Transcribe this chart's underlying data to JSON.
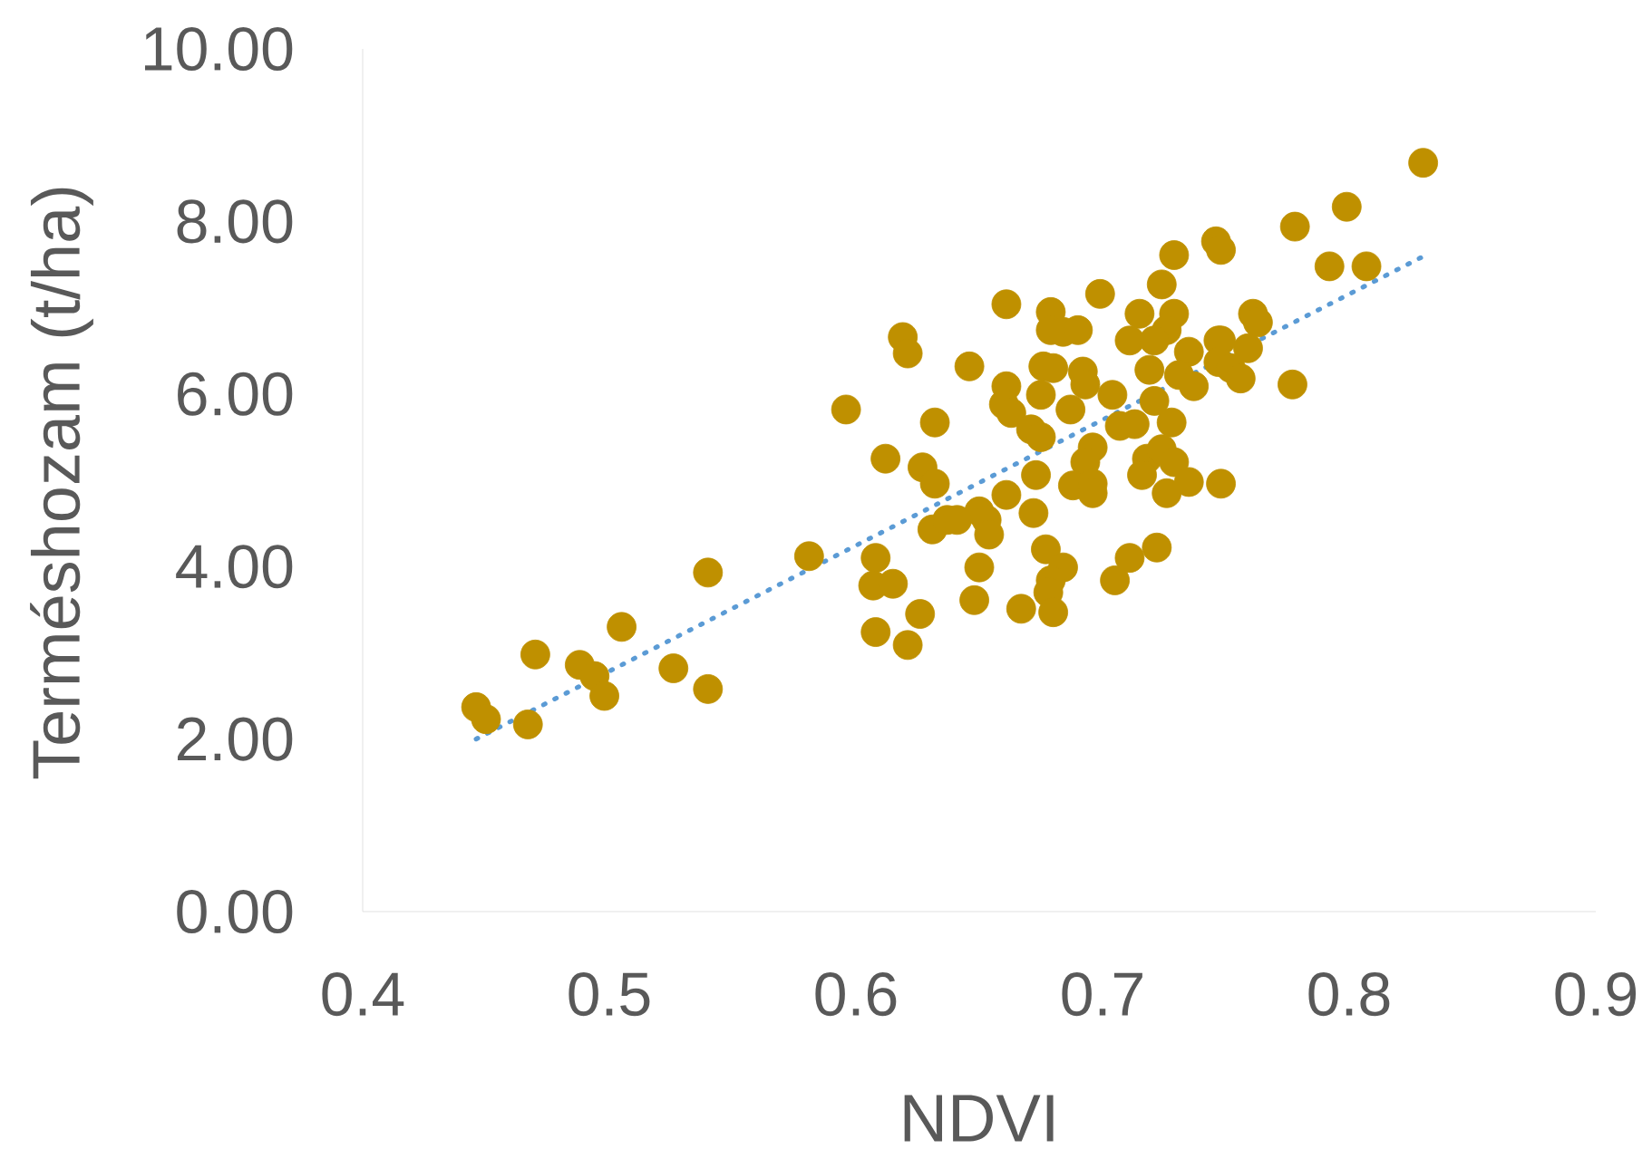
{
  "chart_data": {
    "type": "scatter",
    "xlabel": "NDVI",
    "ylabel": "Terméshozam (t/ha)",
    "xlim": [
      0.4,
      0.9
    ],
    "xticks": [
      0.4,
      0.5,
      0.6,
      0.7,
      0.8,
      0.9
    ],
    "ylim": [
      0,
      10
    ],
    "yticks": [
      {
        "value": 0,
        "label": "0.00"
      },
      {
        "value": 2,
        "label": "2.00"
      },
      {
        "value": 4,
        "label": "4.00"
      },
      {
        "value": 6,
        "label": "6.00"
      },
      {
        "value": 8,
        "label": "8.00"
      },
      {
        "value": 10,
        "label": "10.00"
      }
    ],
    "grid": false,
    "legend": false,
    "series": [
      {
        "type": "scatter",
        "marker": "circle",
        "color": "#bf9000",
        "x": [
          0.446,
          0.45,
          0.467,
          0.47,
          0.488,
          0.494,
          0.498,
          0.505,
          0.526,
          0.54,
          0.54,
          0.581,
          0.596,
          0.661,
          0.619,
          0.621,
          0.679,
          0.699,
          0.724,
          0.729,
          0.715,
          0.729,
          0.726,
          0.711,
          0.721,
          0.735,
          0.748,
          0.679,
          0.684,
          0.69,
          0.646,
          0.676,
          0.68,
          0.692,
          0.693,
          0.719,
          0.731,
          0.737,
          0.661,
          0.66,
          0.663,
          0.675,
          0.687,
          0.704,
          0.707,
          0.713,
          0.721,
          0.728,
          0.632,
          0.671,
          0.675,
          0.612,
          0.627,
          0.632,
          0.696,
          0.693,
          0.718,
          0.724,
          0.729,
          0.716,
          0.673,
          0.688,
          0.696,
          0.696,
          0.735,
          0.748,
          0.661,
          0.726,
          0.672,
          0.65,
          0.653,
          0.631,
          0.637,
          0.641,
          0.654,
          0.608,
          0.677,
          0.711,
          0.722,
          0.684,
          0.65,
          0.607,
          0.615,
          0.679,
          0.705,
          0.648,
          0.678,
          0.667,
          0.68,
          0.626,
          0.608,
          0.621,
          0.83,
          0.799,
          0.778,
          0.746,
          0.748,
          0.792,
          0.807,
          0.761,
          0.763,
          0.747,
          0.759,
          0.747,
          0.752,
          0.756,
          0.777
        ],
        "values": [
          2.37,
          2.23,
          2.17,
          2.98,
          2.86,
          2.73,
          2.5,
          3.3,
          2.82,
          3.93,
          2.58,
          4.12,
          5.82,
          7.04,
          6.66,
          6.47,
          6.95,
          7.16,
          7.27,
          7.61,
          6.93,
          6.93,
          6.74,
          6.62,
          6.62,
          6.49,
          6.62,
          6.74,
          6.72,
          6.74,
          6.32,
          6.32,
          6.3,
          6.26,
          6.11,
          6.28,
          6.22,
          6.09,
          6.09,
          5.88,
          5.78,
          5.99,
          5.82,
          5.99,
          5.63,
          5.65,
          5.92,
          5.67,
          5.67,
          5.59,
          5.5,
          5.25,
          5.15,
          4.96,
          5.38,
          5.21,
          5.25,
          5.36,
          5.21,
          5.06,
          5.06,
          4.94,
          4.96,
          4.85,
          4.98,
          4.96,
          4.83,
          4.85,
          4.62,
          4.64,
          4.54,
          4.43,
          4.54,
          4.54,
          4.37,
          4.1,
          4.2,
          4.1,
          4.22,
          3.99,
          3.99,
          3.78,
          3.8,
          3.84,
          3.84,
          3.61,
          3.7,
          3.51,
          3.47,
          3.45,
          3.24,
          3.09,
          8.68,
          8.17,
          7.94,
          7.77,
          7.67,
          7.48,
          7.48,
          6.93,
          6.83,
          6.62,
          6.53,
          6.37,
          6.3,
          6.18,
          6.11
        ]
      },
      {
        "type": "line",
        "marker": "none",
        "line_style": "dotted",
        "color": "#5b9bd5",
        "x": [
          0.446,
          0.829
        ],
        "values": [
          2.0,
          7.58
        ]
      }
    ]
  }
}
